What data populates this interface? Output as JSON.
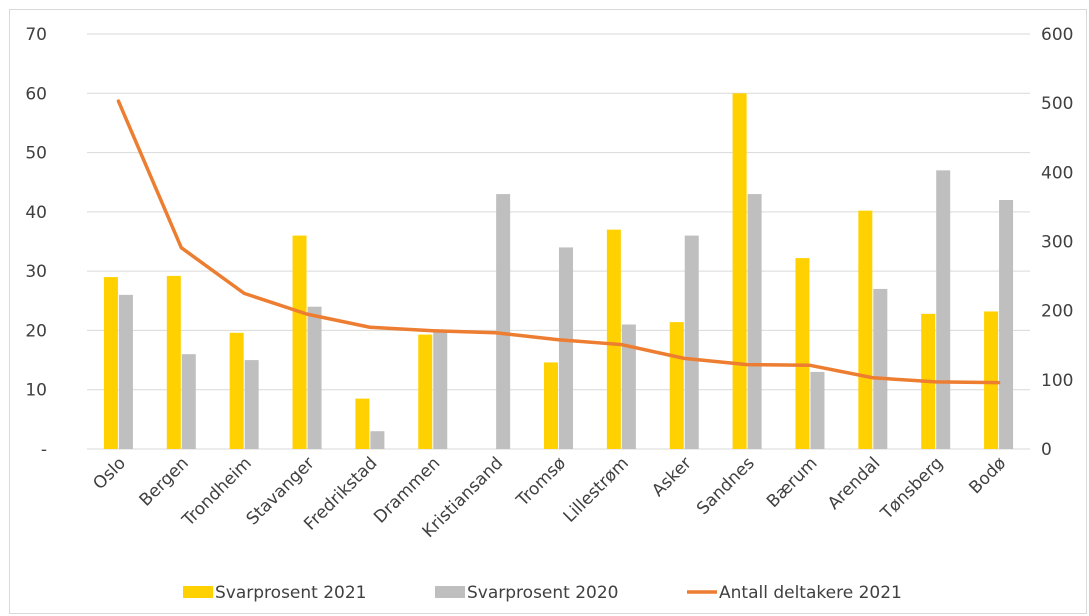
{
  "chart_data": {
    "type": "bar",
    "categories": [
      "Oslo",
      "Bergen",
      "Trondheim",
      "Stavanger",
      "Fredrikstad",
      "Drammen",
      "Kristiansand",
      "Tromsø",
      "Lillestrøm",
      "Asker",
      "Sandnes",
      "Bærum",
      "Arendal",
      "Tønsberg",
      "Bodø"
    ],
    "series": [
      {
        "name": "Svarprosent 2021",
        "kind": "bar",
        "axis": "left",
        "color": "#ffd100",
        "values": [
          29,
          29.2,
          19.6,
          36,
          8.5,
          19.3,
          0,
          14.6,
          37,
          21.4,
          60,
          32.2,
          40.2,
          22.8,
          23.2
        ]
      },
      {
        "name": "Svarprosent 2020",
        "kind": "bar",
        "axis": "left",
        "color": "#bfbfbf",
        "values": [
          26,
          16,
          15,
          24,
          3,
          20,
          43,
          34,
          21,
          36,
          43,
          13,
          27,
          47,
          42
        ]
      },
      {
        "name": "Antall deltakere 2021",
        "kind": "line",
        "axis": "right",
        "color": "#ed7d31",
        "values": [
          503,
          291,
          225,
          195,
          176,
          171,
          168,
          158,
          151,
          131,
          122,
          121,
          103,
          97,
          96
        ]
      }
    ],
    "y_left": {
      "range": [
        0,
        70
      ],
      "ticks": [
        0,
        10,
        20,
        30,
        40,
        50,
        60,
        70
      ],
      "tick_labels": [
        "-",
        "10",
        "20",
        "30",
        "40",
        "50",
        "60",
        "70"
      ]
    },
    "y_right": {
      "range": [
        0,
        600
      ],
      "ticks": [
        0,
        100,
        200,
        300,
        400,
        500,
        600
      ],
      "tick_labels": [
        "0",
        "100",
        "200",
        "300",
        "400",
        "500",
        "600"
      ]
    },
    "grid": true,
    "legend_position": "bottom"
  }
}
